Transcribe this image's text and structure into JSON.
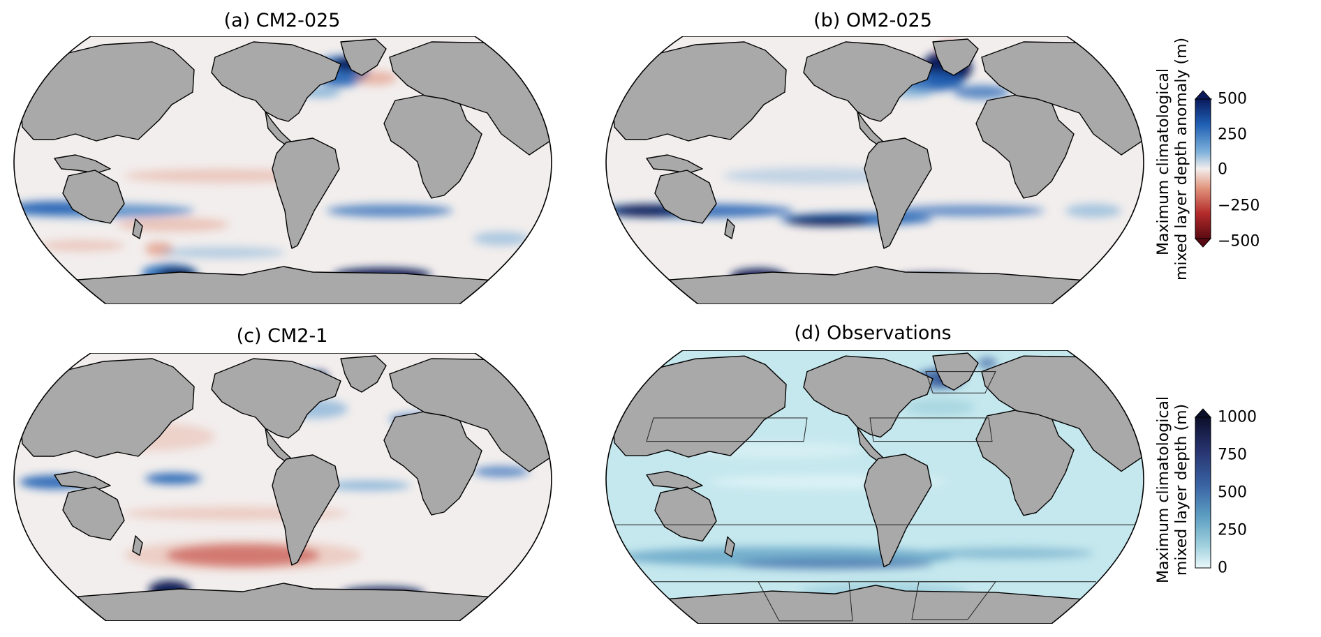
{
  "panels": [
    {
      "title": "(a) CM2-025"
    },
    {
      "title": "(b) OM2-025"
    },
    {
      "title": "(c) CM2-1"
    },
    {
      "title": "(d) Observations"
    }
  ],
  "colorbars": [
    {
      "label_line1": "Maximum climatological",
      "label_line2": "mixed layer depth anomaly (m)",
      "ticks": [
        "500",
        "250",
        "0",
        "−250",
        "−500"
      ],
      "colormap": "diverging red-white-blue",
      "extend": "both",
      "colors": [
        "#0a1a5c",
        "#1f5fb4",
        "#7fb2da",
        "#f3eeec",
        "#e1937c",
        "#b32a2a",
        "#5a0a12"
      ]
    },
    {
      "label_line1": "Maximum climatological",
      "label_line2": "mixed layer depth (m)",
      "ticks": [
        "1000",
        "750",
        "500",
        "250",
        "0"
      ],
      "colormap": "sequential white-blue-navy",
      "extend": "max",
      "colors": [
        "#0c0f2a",
        "#27336f",
        "#3a63a3",
        "#5b9cc1",
        "#9fd0dd",
        "#eaf8fb"
      ]
    }
  ],
  "colors": {
    "land": "#a9a9a9",
    "ocean_anomaly": "#f2eeed",
    "ocean_obs": "#c5e8ee",
    "coast": "#000000"
  }
}
